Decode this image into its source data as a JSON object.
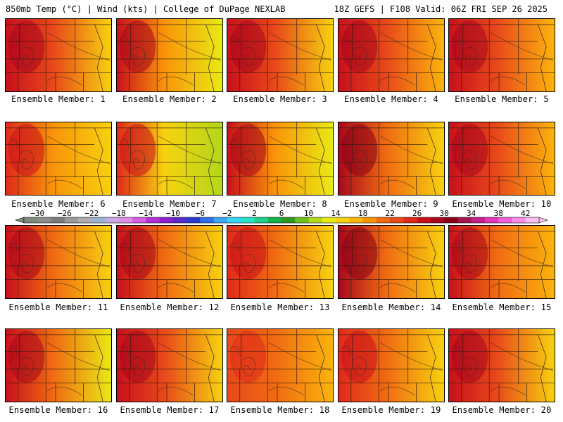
{
  "header": {
    "left": "850mb Temp (°C) | Wind (kts) | College of DuPage NEXLAB",
    "right": "18Z GEFS | F108 Valid: 06Z FRI SEP 26 2025"
  },
  "panels": [
    {
      "caption": "Ensemble Member: 1",
      "east_temp": 14,
      "center_temp": 22,
      "west_temp": 26
    },
    {
      "caption": "Ensemble Member: 2",
      "east_temp": 12,
      "center_temp": 18,
      "west_temp": 26
    },
    {
      "caption": "Ensemble Member: 3",
      "east_temp": 14,
      "center_temp": 22,
      "west_temp": 26
    },
    {
      "caption": "Ensemble Member: 4",
      "east_temp": 16,
      "center_temp": 22,
      "west_temp": 26
    },
    {
      "caption": "Ensemble Member: 5",
      "east_temp": 16,
      "center_temp": 22,
      "west_temp": 26
    },
    {
      "caption": "Ensemble Member: 6",
      "east_temp": 14,
      "center_temp": 18,
      "west_temp": 24
    },
    {
      "caption": "Ensemble Member: 7",
      "east_temp": 10,
      "center_temp": 14,
      "west_temp": 24
    },
    {
      "caption": "Ensemble Member: 8",
      "east_temp": 12,
      "center_temp": 18,
      "west_temp": 26
    },
    {
      "caption": "Ensemble Member: 9",
      "east_temp": 14,
      "center_temp": 20,
      "west_temp": 28
    },
    {
      "caption": "Ensemble Member: 10",
      "east_temp": 16,
      "center_temp": 22,
      "west_temp": 26
    },
    {
      "caption": "Ensemble Member: 11",
      "east_temp": 14,
      "center_temp": 20,
      "west_temp": 26
    },
    {
      "caption": "Ensemble Member: 12",
      "east_temp": 14,
      "center_temp": 20,
      "west_temp": 26
    },
    {
      "caption": "Ensemble Member: 13",
      "east_temp": 14,
      "center_temp": 20,
      "west_temp": 24
    },
    {
      "caption": "Ensemble Member: 14",
      "east_temp": 14,
      "center_temp": 20,
      "west_temp": 28
    },
    {
      "caption": "Ensemble Member: 15",
      "east_temp": 16,
      "center_temp": 20,
      "west_temp": 26
    },
    {
      "caption": "Ensemble Member: 16",
      "east_temp": 12,
      "center_temp": 20,
      "west_temp": 26
    },
    {
      "caption": "Ensemble Member: 17",
      "east_temp": 14,
      "center_temp": 22,
      "west_temp": 26
    },
    {
      "caption": "Ensemble Member: 18",
      "east_temp": 16,
      "center_temp": 20,
      "west_temp": 22
    },
    {
      "caption": "Ensemble Member: 19",
      "east_temp": 14,
      "center_temp": 20,
      "west_temp": 24
    },
    {
      "caption": "Ensemble Member: 20",
      "east_temp": 14,
      "center_temp": 22,
      "west_temp": 26
    }
  ],
  "colorbar": {
    "unit": "°C",
    "min": -32,
    "max": 44,
    "step": 2,
    "labels": [
      "−30",
      "−26",
      "−22",
      "−18",
      "−14",
      "−10",
      "−6",
      "−2",
      "2",
      "6",
      "10",
      "14",
      "18",
      "22",
      "26",
      "30",
      "34",
      "38",
      "42"
    ],
    "label_values": [
      -30,
      -26,
      -22,
      -18,
      -14,
      -10,
      -6,
      -2,
      2,
      6,
      10,
      14,
      18,
      22,
      26,
      30,
      34,
      38,
      42
    ],
    "colors": [
      "#7f8c7d",
      "#8c8c8c",
      "#7b7b7b",
      "#9a9a9a",
      "#adadad",
      "#9bb3d3",
      "#c8a9e6",
      "#e08ce8",
      "#d45fe0",
      "#b32fd6",
      "#8a1fd0",
      "#5a2bc8",
      "#2a3bd0",
      "#2f6fe6",
      "#3fa6f0",
      "#36d6f2",
      "#27e3c4",
      "#1fd08c",
      "#13b34a",
      "#2d9a1f",
      "#6fc11b",
      "#b2d81a",
      "#e8ea14",
      "#f7d20f",
      "#fbb40c",
      "#f99409",
      "#f06a12",
      "#e8481a",
      "#df2a1a",
      "#c8101c",
      "#a8081c",
      "#8a0016",
      "#a31452",
      "#c8208a",
      "#e336b8",
      "#f05fd8",
      "#f98ce8",
      "#fcc0f2"
    ]
  }
}
